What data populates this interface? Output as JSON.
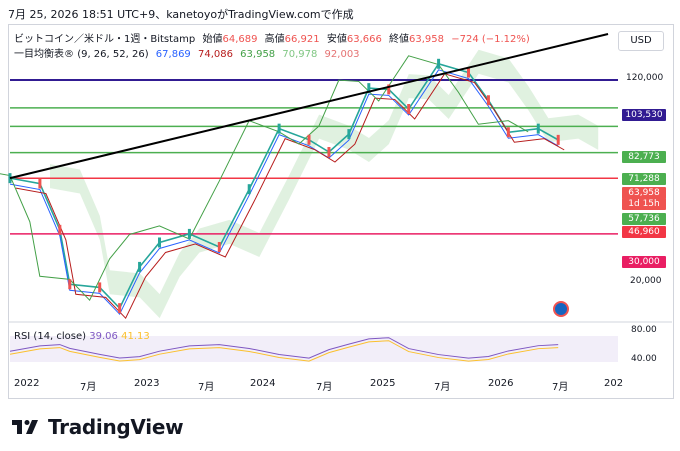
{
  "caption": "7月 25, 2026 18:51 UTC+9、kanetoyoがTradingView.comで作成",
  "symbol_line": {
    "name": "ビットコイン／米ドル・1週・Bitstamp",
    "open_label": "始値",
    "open": "64,689",
    "high_label": "高値",
    "high": "66,921",
    "low_label": "安値",
    "low": "63,666",
    "close_label": "終値",
    "close": "63,958",
    "change": "−724 (−1.12%)"
  },
  "ichimoku_line": {
    "name": "一目均衡表",
    "params": "(9, 26, 52, 26)",
    "v1": "67,869",
    "v2": "74,086",
    "v3": "63,958",
    "v4": "70,978",
    "v5": "92,003"
  },
  "currency": "USD",
  "colors": {
    "up": "#26a69a",
    "down": "#ef5350",
    "tenkan": "#2962ff",
    "kijun": "#b71c1c",
    "chikou": "#43a047",
    "span_a": "#a5d6a7",
    "span_b": "#ef9a9a",
    "purple_line": "#311b92",
    "green_level": "#4caf50",
    "red_level": "#f23645",
    "pink_level": "#e91e63",
    "rsi": "#7e57c2",
    "rsi_ma": "#fbc02d"
  },
  "price_tags": [
    {
      "label": "103,530",
      "color": "#311b92"
    },
    {
      "label": "82,773",
      "color": "#4caf50"
    },
    {
      "label": "71,288",
      "color": "#4caf50"
    },
    {
      "label": "63,958",
      "color": "#ef5350"
    },
    {
      "label": "1d 15h",
      "color": "#ef5350"
    },
    {
      "label": "57,736",
      "color": "#4caf50"
    },
    {
      "label": "46,960",
      "color": "#f23645"
    },
    {
      "label": "30,000",
      "color": "#e91e63"
    }
  ],
  "y_ticks": [
    "120,000",
    "20,000"
  ],
  "rsi_legend": {
    "name": "RSI (14, close)",
    "rsi": "39.06",
    "ma": "41.13"
  },
  "rsi_ticks": [
    "80.00",
    "40.00"
  ],
  "x_labels": [
    "2022",
    "7月",
    "2023",
    "7月",
    "2024",
    "7月",
    "2025",
    "7月",
    "2026",
    "7月",
    "202"
  ],
  "brand": "TradingView",
  "chart_data": {
    "type": "line",
    "title": "ビットコイン／米ドル・1週・Bitstamp",
    "y_scale": "log",
    "ylim": [
      15000,
      150000
    ],
    "x_range": [
      "2021-12",
      "2027-01"
    ],
    "series": [
      {
        "name": "BTC/USD",
        "x": [
          "2021-12",
          "2022-03",
          "2022-05",
          "2022-06",
          "2022-09",
          "2022-11",
          "2023-01",
          "2023-03",
          "2023-06",
          "2023-09",
          "2023-12",
          "2024-03",
          "2024-06",
          "2024-08",
          "2024-10",
          "2024-12",
          "2025-02",
          "2025-04",
          "2025-07",
          "2025-10",
          "2025-12",
          "2026-02",
          "2026-05",
          "2026-07"
        ],
        "values": [
          47000,
          45000,
          31000,
          20000,
          19500,
          16500,
          23000,
          28000,
          30000,
          27000,
          43000,
          70000,
          64000,
          58000,
          67000,
          97000,
          96000,
          82000,
          118000,
          110000,
          88000,
          68000,
          70000,
          63958
        ]
      },
      {
        "name": "RSI (14, close)",
        "values_note": "",
        "last": 39.06
      },
      {
        "name": "",
        "last": 41.13
      }
    ],
    "levels": [
      103530,
      82773,
      71288,
      57736,
      46960,
      30000
    ],
    "trendline": {
      "from": [
        "2021-12",
        47000
      ],
      "to": [
        "2026-12",
        175000
      ]
    },
    "rsi_range": [
      0,
      100
    ]
  }
}
